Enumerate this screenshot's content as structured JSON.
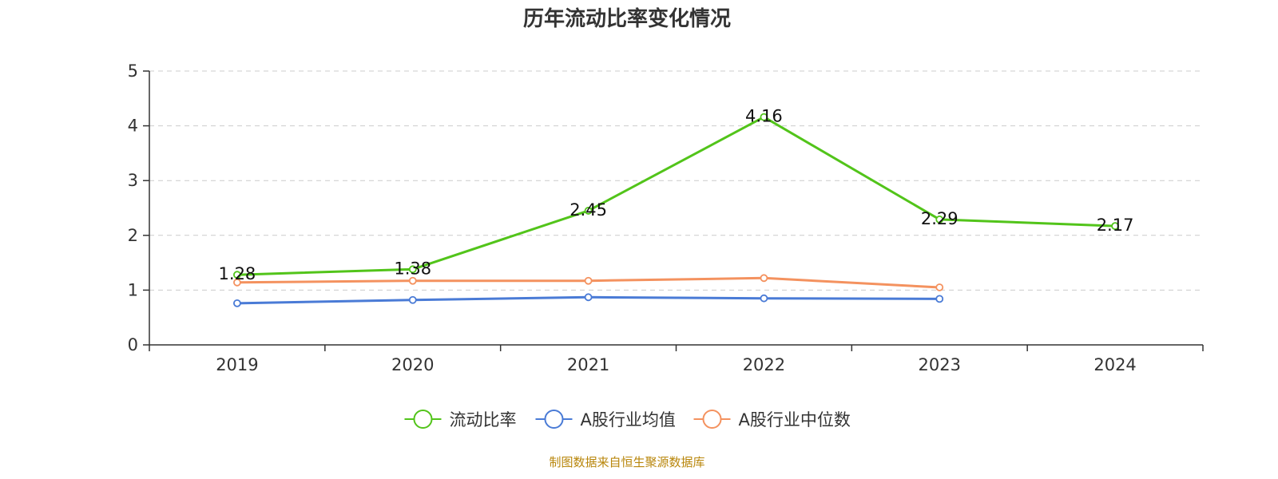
{
  "chart_data": {
    "type": "line",
    "title": "历年流动比率变化情况",
    "categories": [
      "2019",
      "2020",
      "2021",
      "2022",
      "2023",
      "2024"
    ],
    "ylim": [
      0,
      5
    ],
    "yticks": [
      0,
      1,
      2,
      3,
      4,
      5
    ],
    "grid": true,
    "legend_position": "bottom",
    "series": [
      {
        "name": "流动比率",
        "color": "#52c41a",
        "values": [
          1.28,
          1.38,
          2.45,
          4.16,
          2.29,
          2.17
        ],
        "labels": [
          "1.28",
          "1.38",
          "2.45",
          "4.16",
          "2.29",
          "2.17"
        ]
      },
      {
        "name": "A股行业均值",
        "color": "#4a7bd6",
        "values": [
          0.76,
          0.82,
          0.87,
          0.85,
          0.84,
          null
        ]
      },
      {
        "name": "A股行业中位数",
        "color": "#f4925f",
        "values": [
          1.14,
          1.17,
          1.17,
          1.22,
          1.05,
          null
        ]
      }
    ]
  },
  "footer": {
    "source": "制图数据来自恒生聚源数据库",
    "source_color": "#b8860b"
  }
}
